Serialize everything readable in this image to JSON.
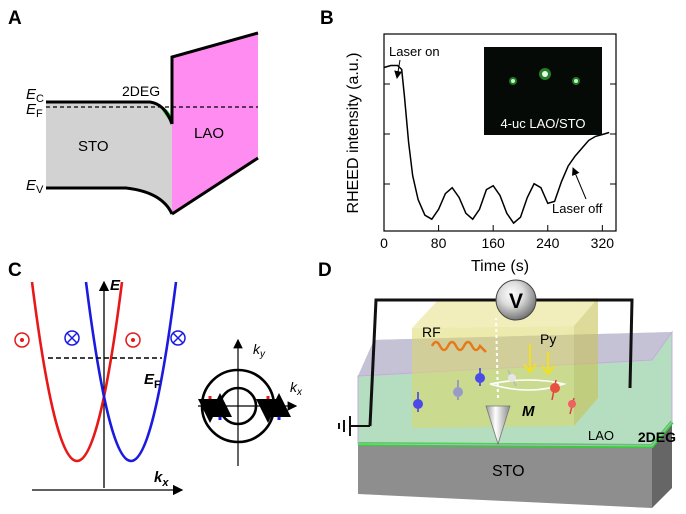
{
  "panels": {
    "A": {
      "letter": "A",
      "ec_main": "E",
      "ec_sub": "C",
      "ef_main": "E",
      "ef_sub": "F",
      "ev_main": "E",
      "ev_sub": "V",
      "twodeg": "2DEG",
      "sto": "STO",
      "lao": "LAO"
    },
    "B": {
      "letter": "B",
      "ylabel": "RHEED intensity (a.u.)",
      "xlabel": "Time (s)",
      "laser_on": "Laser on",
      "laser_off": "Laser off",
      "inset_label": "4-uc LAO/STO"
    },
    "C": {
      "letter": "C",
      "e_axis": "E",
      "kx_main": "k",
      "kx_sub": "x",
      "ef_main": "E",
      "ef_sub": "F",
      "ky_main": "k",
      "ky_sub": "y",
      "kx2_main": "k",
      "kx2_sub": "x"
    },
    "D": {
      "letter": "D",
      "v": "V",
      "rf": "RF",
      "py": "Py",
      "m": "M",
      "lao": "LAO",
      "twodeg": "2DEG",
      "sto": "STO"
    }
  },
  "chart_data": {
    "type": "line",
    "title": "",
    "xlabel": "Time (s)",
    "ylabel": "RHEED intensity (a.u.)",
    "xlim": [
      0,
      340
    ],
    "xticks": [
      0,
      80,
      160,
      240,
      320
    ],
    "grid": false,
    "series": [
      {
        "x": [
          0,
          10,
          20,
          26,
          30,
          36,
          42,
          50,
          60,
          70,
          80,
          90,
          100,
          110,
          120,
          130,
          140,
          150,
          160,
          170,
          180,
          190,
          200,
          210,
          220,
          230,
          240,
          250,
          260,
          270,
          280,
          290,
          300,
          310,
          320,
          330
        ],
        "y": [
          0.83,
          0.84,
          0.84,
          0.82,
          0.68,
          0.45,
          0.28,
          0.16,
          0.08,
          0.06,
          0.11,
          0.19,
          0.22,
          0.17,
          0.09,
          0.06,
          0.11,
          0.21,
          0.23,
          0.18,
          0.09,
          0.04,
          0.07,
          0.17,
          0.24,
          0.22,
          0.14,
          0.15,
          0.25,
          0.33,
          0.38,
          0.42,
          0.46,
          0.48,
          0.49,
          0.5
        ]
      }
    ],
    "annotations": [
      "Laser on",
      "Laser off"
    ]
  }
}
